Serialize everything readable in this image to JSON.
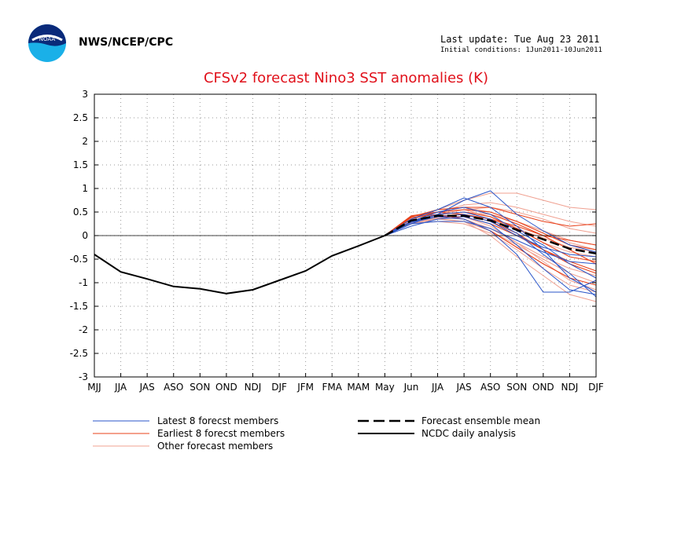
{
  "header": {
    "org": "NWS/NCEP/CPC",
    "last_update": "Last update: Tue Aug 23 2011",
    "initial_conditions": "Initial conditions: 1Jun2011-10Jun2011",
    "logo_text": "NOAA"
  },
  "colors": {
    "latest": "#2a55c8",
    "earliest": "#e8401a",
    "other": "#f0a090",
    "mean": "#000000",
    "analysis": "#000000",
    "title": "#e0101a"
  },
  "chart_data": {
    "type": "line",
    "title": "CFSv2 forecast Nino3 SST anomalies (K)",
    "categories": [
      "MJJ",
      "JJA",
      "JAS",
      "ASO",
      "SON",
      "OND",
      "NDJ",
      "DJF",
      "JFM",
      "FMA",
      "MAM",
      "May",
      "Jun",
      "JJA",
      "JAS",
      "ASO",
      "SON",
      "OND",
      "NDJ",
      "DJF"
    ],
    "ylim": [
      -3,
      3
    ],
    "yticks": [
      "3",
      "2.5",
      "2",
      "1.5",
      "1",
      "0.5",
      "0",
      "-0.5",
      "-1",
      "-1.5",
      "-2",
      "-2.5",
      "-3"
    ],
    "grid": true,
    "legend_position": "bottom",
    "analysis": {
      "name": "NCDC daily analysis",
      "values": [
        -0.4,
        -0.77,
        -0.92,
        -1.08,
        -1.13,
        -1.23,
        -1.15,
        -0.95,
        -0.75,
        -0.43,
        -0.22,
        0.0
      ]
    },
    "mean": {
      "name": "Forecast ensemble mean",
      "values": [
        0.0,
        0.32,
        0.42,
        0.42,
        0.32,
        0.12,
        -0.08,
        -0.28,
        -0.38
      ]
    },
    "latest_members": [
      [
        0.0,
        0.25,
        0.45,
        0.75,
        0.95,
        0.45,
        0.1,
        -0.2,
        -0.35
      ],
      [
        0.0,
        0.3,
        0.5,
        0.6,
        0.45,
        0.1,
        -0.2,
        -0.6,
        -0.9
      ],
      [
        0.0,
        0.2,
        0.35,
        0.4,
        0.25,
        -0.2,
        -0.7,
        -1.15,
        -1.25
      ],
      [
        0.0,
        0.35,
        0.55,
        0.8,
        0.6,
        0.2,
        -0.3,
        -0.9,
        -1.2
      ],
      [
        0.0,
        0.3,
        0.4,
        0.35,
        0.1,
        -0.4,
        -1.2,
        -1.2,
        -0.95
      ],
      [
        0.0,
        0.3,
        0.45,
        0.5,
        0.35,
        0.05,
        -0.4,
        -0.8,
        -1.3
      ],
      [
        0.0,
        0.25,
        0.3,
        0.3,
        0.15,
        -0.1,
        -0.35,
        -0.55,
        -0.6
      ],
      [
        0.0,
        0.28,
        0.4,
        0.45,
        0.3,
        0.0,
        -0.25,
        -0.4,
        -0.45
      ]
    ],
    "earliest_members": [
      [
        0.0,
        0.4,
        0.55,
        0.6,
        0.6,
        0.45,
        0.3,
        0.2,
        0.25
      ],
      [
        0.0,
        0.35,
        0.5,
        0.55,
        0.5,
        0.3,
        0.05,
        -0.2,
        -0.3
      ],
      [
        0.0,
        0.3,
        0.4,
        0.4,
        0.25,
        0.0,
        -0.3,
        -0.55,
        -0.75
      ],
      [
        0.0,
        0.38,
        0.45,
        0.35,
        0.1,
        -0.25,
        -0.6,
        -0.9,
        -1.05
      ],
      [
        0.0,
        0.42,
        0.5,
        0.45,
        0.35,
        0.2,
        0.0,
        -0.1,
        -0.2
      ],
      [
        0.0,
        0.3,
        0.45,
        0.5,
        0.4,
        0.15,
        -0.15,
        -0.45,
        -0.55
      ],
      [
        0.0,
        0.35,
        0.55,
        0.6,
        0.45,
        0.25,
        0.0,
        -0.3,
        -0.6
      ],
      [
        0.0,
        0.4,
        0.5,
        0.45,
        0.3,
        0.05,
        -0.3,
        -0.6,
        -0.8
      ]
    ],
    "other_members": [
      [
        0.0,
        0.35,
        0.55,
        0.75,
        0.9,
        0.9,
        0.75,
        0.6,
        0.55
      ],
      [
        0.0,
        0.3,
        0.5,
        0.65,
        0.7,
        0.6,
        0.45,
        0.3,
        0.2
      ],
      [
        0.0,
        0.25,
        0.35,
        0.3,
        0.0,
        -0.45,
        -0.85,
        -1.25,
        -1.4
      ],
      [
        0.0,
        0.3,
        0.4,
        0.4,
        0.2,
        -0.15,
        -0.55,
        -0.95,
        -1.15
      ],
      [
        0.0,
        0.3,
        0.45,
        0.5,
        0.45,
        0.3,
        0.1,
        -0.1,
        -0.2
      ],
      [
        0.0,
        0.35,
        0.5,
        0.55,
        0.4,
        0.15,
        -0.15,
        -0.35,
        -0.45
      ],
      [
        0.0,
        0.25,
        0.3,
        0.25,
        0.05,
        -0.3,
        -0.7,
        -1.05,
        -1.2
      ],
      [
        0.0,
        0.3,
        0.45,
        0.55,
        0.6,
        0.5,
        0.35,
        0.15,
        0.05
      ],
      [
        0.0,
        0.28,
        0.38,
        0.35,
        0.15,
        -0.15,
        -0.45,
        -0.7,
        -0.85
      ],
      [
        0.0,
        0.32,
        0.42,
        0.45,
        0.35,
        0.15,
        -0.05,
        -0.25,
        -0.35
      ],
      [
        0.0,
        0.3,
        0.5,
        0.6,
        0.5,
        0.3,
        0.1,
        -0.15,
        -0.3
      ],
      [
        0.0,
        0.26,
        0.36,
        0.3,
        0.1,
        -0.2,
        -0.5,
        -0.8,
        -1.0
      ]
    ]
  },
  "legend": {
    "latest": "Latest 8 forecst members",
    "earliest": "Earliest 8 forecst members",
    "other": "Other forecast members",
    "mean": "Forecast ensemble mean",
    "analysis": "NCDC daily analysis"
  }
}
